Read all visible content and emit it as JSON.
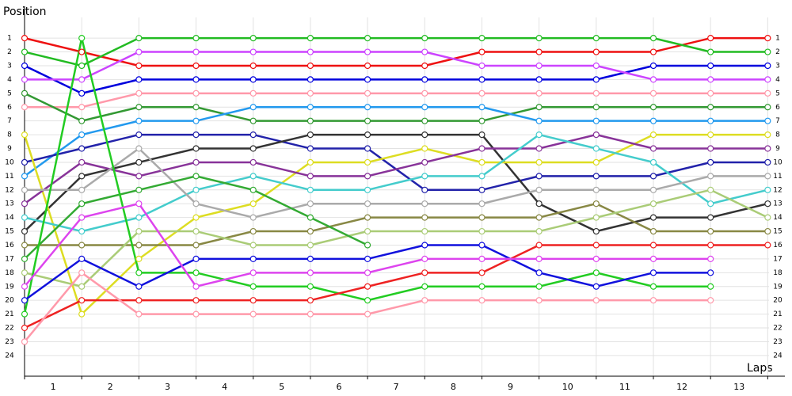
{
  "chart_data": {
    "type": "line",
    "y_label": "Position",
    "x_label": "Laps",
    "x": [
      0,
      1,
      2,
      3,
      4,
      5,
      6,
      7,
      8,
      9,
      10,
      11,
      12,
      13
    ],
    "xlim": [
      0,
      13.3
    ],
    "xticks": [
      {
        "value": 0.5,
        "label": "1"
      },
      {
        "value": 1.5,
        "label": "2"
      },
      {
        "value": 2.5,
        "label": "3"
      },
      {
        "value": 3.5,
        "label": "4"
      },
      {
        "value": 4.5,
        "label": "5"
      },
      {
        "value": 5.5,
        "label": "6"
      },
      {
        "value": 6.5,
        "label": "7"
      },
      {
        "value": 7.5,
        "label": "8"
      },
      {
        "value": 8.5,
        "label": "9"
      },
      {
        "value": 9.5,
        "label": "10"
      },
      {
        "value": 10.5,
        "label": "11"
      },
      {
        "value": 11.5,
        "label": "12"
      },
      {
        "value": 12.5,
        "label": "13"
      }
    ],
    "ylim": [
      25.5,
      -0.5
    ],
    "yticks": [
      1,
      2,
      3,
      4,
      5,
      6,
      7,
      8,
      9,
      10,
      11,
      12,
      13,
      14,
      15,
      16,
      17,
      18,
      19,
      20,
      21,
      22,
      23,
      24
    ],
    "grid": true,
    "series": [
      {
        "color": "#ee1111",
        "values": [
          1,
          2,
          3,
          3,
          3,
          3,
          3,
          3,
          2,
          2,
          2,
          2,
          1,
          1
        ]
      },
      {
        "color": "#22bb22",
        "values": [
          2,
          3,
          1,
          1,
          1,
          1,
          1,
          1,
          1,
          1,
          1,
          1,
          2,
          2
        ]
      },
      {
        "color": "#0000dd",
        "values": [
          3,
          5,
          4,
          4,
          4,
          4,
          4,
          4,
          4,
          4,
          4,
          3,
          3,
          3
        ]
      },
      {
        "color": "#cc44ff",
        "values": [
          4,
          4,
          2,
          2,
          2,
          2,
          2,
          2,
          3,
          3,
          3,
          4,
          4,
          4
        ]
      },
      {
        "color": "#ff99aa",
        "values": [
          6,
          6,
          5,
          5,
          5,
          5,
          5,
          5,
          5,
          5,
          5,
          5,
          5,
          5
        ]
      },
      {
        "color": "#339933",
        "values": [
          5,
          7,
          6,
          6,
          7,
          7,
          7,
          7,
          7,
          6,
          6,
          6,
          6,
          6
        ]
      },
      {
        "color": "#2299ee",
        "values": [
          11,
          8,
          7,
          7,
          6,
          6,
          6,
          6,
          6,
          7,
          7,
          7,
          7,
          7
        ]
      },
      {
        "color": "#2222aa",
        "values": [
          10,
          9,
          8,
          8,
          8,
          9,
          9,
          12,
          12,
          11,
          11,
          11,
          10,
          10
        ]
      },
      {
        "color": "#333333",
        "values": [
          15,
          11,
          10,
          9,
          9,
          8,
          8,
          8,
          8,
          13,
          15,
          14,
          14,
          13
        ]
      },
      {
        "color": "#dddd22",
        "values": [
          8,
          21,
          17,
          14,
          13,
          10,
          10,
          9,
          10,
          10,
          10,
          8,
          8,
          8
        ]
      },
      {
        "color": "#883399",
        "values": [
          13,
          10,
          11,
          10,
          10,
          11,
          11,
          10,
          9,
          9,
          8,
          9,
          9,
          9
        ]
      },
      {
        "color": "#44cccc",
        "values": [
          14,
          15,
          14,
          12,
          11,
          12,
          12,
          11,
          11,
          8,
          9,
          10,
          13,
          12
        ]
      },
      {
        "color": "#aaaaaa",
        "values": [
          12,
          12,
          9,
          13,
          14,
          13,
          13,
          13,
          13,
          12,
          12,
          12,
          11,
          11
        ]
      },
      {
        "color": "#888844",
        "values": [
          16,
          16,
          16,
          16,
          15,
          15,
          14,
          14,
          14,
          14,
          13,
          15,
          15,
          15
        ]
      },
      {
        "color": "#aacc77",
        "values": [
          18,
          19,
          15,
          15,
          16,
          16,
          15,
          15,
          15,
          15,
          14,
          13,
          12,
          14
        ]
      },
      {
        "color": "#33aa33",
        "values": [
          17,
          13,
          12,
          11,
          12,
          14,
          16,
          null,
          null,
          null,
          null,
          null,
          null,
          null
        ]
      },
      {
        "color": "#22cc22",
        "values": [
          21,
          1,
          18,
          18,
          19,
          19,
          20,
          19,
          19,
          19,
          18,
          19,
          19,
          null
        ]
      },
      {
        "color": "#ee2222",
        "values": [
          22,
          20,
          20,
          20,
          20,
          20,
          19,
          18,
          18,
          16,
          16,
          16,
          16,
          16
        ]
      },
      {
        "color": "#1111dd",
        "values": [
          20,
          17,
          19,
          17,
          17,
          17,
          17,
          16,
          16,
          18,
          19,
          18,
          18,
          null
        ]
      },
      {
        "color": "#dd44ee",
        "values": [
          19,
          14,
          13,
          19,
          18,
          18,
          18,
          17,
          17,
          17,
          17,
          17,
          17,
          null
        ]
      },
      {
        "color": "#ff99aa",
        "values": [
          23,
          18,
          21,
          21,
          21,
          21,
          21,
          20,
          20,
          20,
          20,
          20,
          20,
          null
        ]
      }
    ]
  }
}
